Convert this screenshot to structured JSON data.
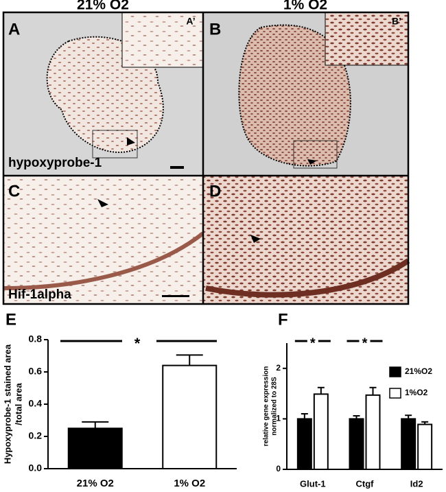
{
  "headers": [
    "21% O2",
    "1% O2"
  ],
  "panels": {
    "A": "A",
    "A_inset": "A’",
    "B": "B",
    "B_inset": "B’",
    "C": "C",
    "D": "D",
    "stain_top": "hypoxyprobe-1",
    "stain_bottom": "Hif-1alpha"
  },
  "chart_data": [
    {
      "type": "bar",
      "panel": "E",
      "ylabel": [
        "Hypoxyprobe-1 stained area",
        "/total area"
      ],
      "categories": [
        "21% O2",
        "1% O2"
      ],
      "values": [
        0.25,
        0.64
      ],
      "errors": [
        0.04,
        0.065
      ],
      "colors": [
        "#000000",
        "#ffffff"
      ],
      "ylim": [
        0,
        0.8
      ],
      "yticks": [
        {
          "value": 0,
          "label": "0.0"
        },
        0.2,
        0.4,
        0.6,
        0.8
      ],
      "annotations": [
        "*"
      ]
    },
    {
      "type": "bar",
      "panel": "F",
      "ylabel": [
        "relative gene expression",
        "normalized to 28S"
      ],
      "categories": [
        "Glut-1",
        "Ctgf",
        "Id2"
      ],
      "series": [
        {
          "name": "21%O2",
          "color": "#000000",
          "values": [
            1.0,
            1.0,
            1.0
          ],
          "errors": [
            0.1,
            0.06,
            0.07
          ]
        },
        {
          "name": "1%O2",
          "color": "#ffffff",
          "values": [
            1.49,
            1.47,
            0.89
          ],
          "errors": [
            0.13,
            0.15,
            0.05
          ]
        }
      ],
      "ylim": [
        0,
        2.5
      ],
      "yticks": [
        0,
        1,
        2
      ],
      "annotations": [
        "*",
        "*"
      ]
    }
  ]
}
